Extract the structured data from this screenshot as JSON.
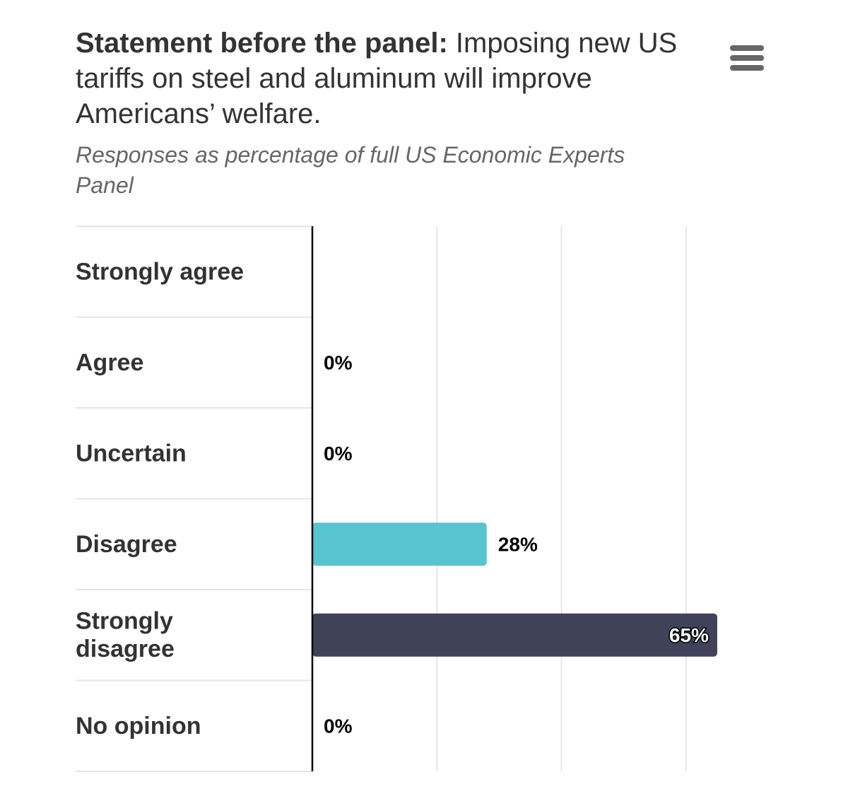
{
  "chart_data": {
    "type": "bar",
    "orientation": "horizontal",
    "title_bold": "Statement before the panel:",
    "title_rest": " Imposing new US tariffs on steel and aluminum will improve Americans’ welfare.",
    "subtitle": "Responses as percentage of full US Economic Experts Panel",
    "categories": [
      "Strongly agree",
      "Agree",
      "Uncertain",
      "Disagree",
      "Strongly disagree",
      "No opinion"
    ],
    "values": [
      null,
      0,
      0,
      28,
      65,
      0
    ],
    "value_labels": [
      "",
      "0%",
      "0%",
      "28%",
      "65%",
      "0%"
    ],
    "bar_colors": [
      "#58c4d0",
      "#58c4d0",
      "#58c4d0",
      "#58c4d0",
      "#3f4259",
      "#58c4d0"
    ],
    "xlim": [
      0,
      70
    ],
    "grid": true,
    "legend": "none"
  },
  "colors": {
    "text": "#333333",
    "subtitle": "#666666",
    "grid": "#e6e6e6",
    "axis": "#000000",
    "menu_icon": "#666666"
  },
  "toolbar": {
    "menu_icon": "hamburger-menu-icon"
  }
}
